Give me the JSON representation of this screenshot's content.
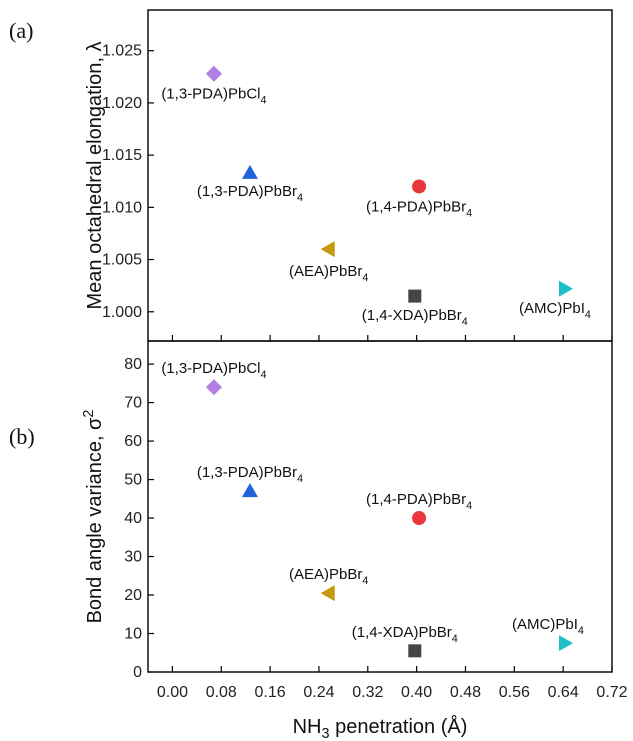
{
  "chart_data": {
    "type": "scatter",
    "x_axis": {
      "label_main": "NH",
      "label_sub": "3",
      "label_rest": " penetration (Å)",
      "lim": [
        -0.04,
        0.72
      ],
      "ticks": [
        "0.00",
        "0.08",
        "0.16",
        "0.24",
        "0.32",
        "0.40",
        "0.48",
        "0.56",
        "0.64",
        "0.72"
      ]
    },
    "panels": [
      {
        "id": "a",
        "panel_label": "(a)",
        "ylabel_main": "Mean octahedral elongation, λ",
        "ylim": [
          0.9972,
          1.0289
        ],
        "yticks": [
          "1.000",
          "1.005",
          "1.010",
          "1.015",
          "1.020",
          "1.025"
        ],
        "points": [
          {
            "compound": "(1,3-PDA)PbCl",
            "sub": "4",
            "x": 0.068,
            "y": 1.0228,
            "marker": "diamond",
            "color": "#b07fe0"
          },
          {
            "compound": "(1,3-PDA)PbBr",
            "sub": "4",
            "x": 0.127,
            "y": 1.0133,
            "marker": "triangle-up",
            "color": "#1f63d8"
          },
          {
            "compound": "(1,4-PDA)PbBr",
            "sub": "4",
            "x": 0.404,
            "y": 1.012,
            "marker": "circle",
            "color": "#e8363b"
          },
          {
            "compound": "(AEA)PbBr",
            "sub": "4",
            "x": 0.256,
            "y": 1.006,
            "marker": "triangle-left",
            "color": "#c8980c"
          },
          {
            "compound": "(1,4-XDA)PbBr",
            "sub": "4",
            "x": 0.397,
            "y": 1.0015,
            "marker": "square",
            "color": "#454545"
          },
          {
            "compound": "(AMC)PbI",
            "sub": "4",
            "x": 0.643,
            "y": 1.0022,
            "marker": "triangle-right",
            "color": "#1ec0c8"
          }
        ]
      },
      {
        "id": "b",
        "panel_label": "(b)",
        "ylabel_main": "Bond angle variance, σ",
        "ylabel_sup": "2",
        "ylim": [
          0,
          86
        ],
        "yticks": [
          "0",
          "10",
          "20",
          "30",
          "40",
          "50",
          "60",
          "70",
          "80"
        ],
        "points": [
          {
            "compound": "(1,3-PDA)PbCl",
            "sub": "4",
            "x": 0.068,
            "y": 74,
            "marker": "diamond",
            "color": "#b07fe0"
          },
          {
            "compound": "(1,3-PDA)PbBr",
            "sub": "4",
            "x": 0.127,
            "y": 47,
            "marker": "triangle-up",
            "color": "#1f63d8"
          },
          {
            "compound": "(1,4-PDA)PbBr",
            "sub": "4",
            "x": 0.404,
            "y": 40,
            "marker": "circle",
            "color": "#e8363b"
          },
          {
            "compound": "(AEA)PbBr",
            "sub": "4",
            "x": 0.256,
            "y": 20.5,
            "marker": "triangle-left",
            "color": "#c8980c"
          },
          {
            "compound": "(1,4-XDA)PbBr",
            "sub": "4",
            "x": 0.397,
            "y": 5.5,
            "marker": "square",
            "color": "#454545"
          },
          {
            "compound": "(AMC)PbI",
            "sub": "4",
            "x": 0.643,
            "y": 7.5,
            "marker": "triangle-right",
            "color": "#1ec0c8"
          }
        ]
      }
    ]
  }
}
